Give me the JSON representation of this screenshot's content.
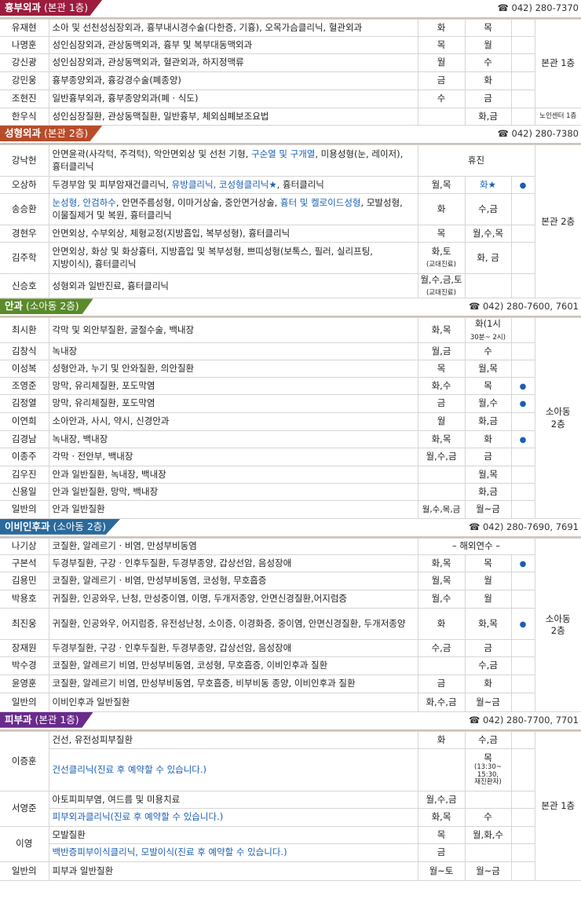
{
  "colors": {
    "thoracic": "#9c1c3e",
    "plastic": "#b84c2a",
    "eye": "#5a8a2a",
    "ent": "#2a6a9c",
    "derm": "#6a2a8c",
    "blue_text": "#1a5fb4",
    "dot": "#1a5fb4"
  },
  "icons": {
    "tel": "telephone-icon",
    "dot": "bullet-dot-icon"
  },
  "sections": [
    {
      "id": "thoracic",
      "title": "흉부외과",
      "sub": "(본관 1층)",
      "tel": "☎ 042) 280-7370",
      "color": "thoracic",
      "rows": [
        {
          "name": "유재현",
          "desc": [
            {
              "t": "소아 및 선천성심장외과, 흉부내시경수술(다한증, 기흉), 오목가슴클리닉, 혈관외과"
            }
          ],
          "am": "화",
          "pm": "목",
          "h": 22
        },
        {
          "name": "나명훈",
          "desc": [
            {
              "t": "성인심장외과, 관상동맥외과, 흉부 및 복부대동맥외과"
            }
          ],
          "am": "목",
          "pm": "월",
          "h": 22
        },
        {
          "name": "강신광",
          "desc": [
            {
              "t": "성인심장외과, 관상동맥외과, 혈관외과, 하지정맥류"
            }
          ],
          "am": "월",
          "pm": "수",
          "h": 23
        },
        {
          "name": "강민웅",
          "desc": [
            {
              "t": "흉부종양외과, 흉강경수술(폐종양)"
            }
          ],
          "am": "금",
          "pm": "화",
          "h": 23
        },
        {
          "name": "조현진",
          "desc": [
            {
              "t": "일반흉부외과, 흉부종양외과(폐 · 식도)"
            }
          ],
          "am": "수",
          "pm": "금",
          "h": 23
        },
        {
          "name": "한우식",
          "desc": [
            {
              "t": "성인심장질환, 관상동맥질환, 일반흉부, 체외심폐보조요법"
            }
          ],
          "am": "",
          "pm": "화,금",
          "h": 22,
          "loc": "노인센터 1층",
          "locSmall": true
        }
      ],
      "loc": "본관 1층",
      "locSpan": 5
    },
    {
      "id": "plastic",
      "title": "성형외과",
      "sub": "(본관 2층)",
      "tel": "☎ 042) 280-7380",
      "color": "plastic",
      "rows": [
        {
          "name": "강낙헌",
          "desc": [
            {
              "t": "안면윤곽(사각턱, 주걱턱), 악안면외상 및 선천 기형, "
            },
            {
              "t": "구순열 및 구개열",
              "b": 1
            },
            {
              "t": ", 미용성형(눈, 레이저), 흉터클리닉"
            }
          ],
          "merged": "휴진",
          "h": 40
        },
        {
          "name": "오상하",
          "desc": [
            {
              "t": "두경부암 및 피부암재건클리닉, "
            },
            {
              "t": "유방클리닉, 코성형클리닉★",
              "b": 1
            },
            {
              "t": ", 흉터클리닉"
            }
          ],
          "am": "월,목",
          "pm": "화★",
          "pmBlue": true,
          "dot": true,
          "h": 22
        },
        {
          "name": "송승환",
          "desc": [
            {
              "t": "눈성형, 안검하수",
              "b": 1
            },
            {
              "t": ", 안면주름성형, 이마거상술, 중안면거상술, "
            },
            {
              "t": "흉터 및 켈로이드성형",
              "b": 1
            },
            {
              "t": ", 모발성형, 이물질제거 및 복원, 흉터클리닉"
            }
          ],
          "am": "화",
          "pm": "수,금",
          "h": 40
        },
        {
          "name": "경현우",
          "desc": [
            {
              "t": "안면외상, 수부외상, 체형교정(지방흡입, 복부성형), 흉터클리닉"
            }
          ],
          "am": "목",
          "pm": "월,수,목",
          "h": 22
        },
        {
          "name": "김주학",
          "desc": [
            {
              "t": "안면외상, 화상 및 화상흉터, 지방흡입 및 복부성형, 쁘띠성형(보톡스, 필러, 실리프팅, 지방이식), 흉터클리닉"
            }
          ],
          "am": "화,토",
          "amNote": "(교대진료)",
          "pm": "화, 금",
          "h": 40
        },
        {
          "name": "신승호",
          "desc": [
            {
              "t": "성형외과 일반진료, 흉터클리닉"
            }
          ],
          "am": "월,수,금,토",
          "amNote": "(교대진료)",
          "pm": "",
          "h": 28
        }
      ],
      "loc": "본관 2층",
      "locSpan": 6
    },
    {
      "id": "eye",
      "title": "안과",
      "sub": "(소아동 2층)",
      "tel": "☎ 042) 280-7600, 7601",
      "color": "eye",
      "rows": [
        {
          "name": "최시환",
          "desc": [
            {
              "t": "각막 및 외안부질환, 굴절수술, 백내장"
            }
          ],
          "am": "화,목",
          "pm": "화(1시",
          "pmNote": "30분~ 2시)",
          "h": 30
        },
        {
          "name": "김창식",
          "desc": [
            {
              "t": "녹내장"
            }
          ],
          "am": "월,금",
          "pm": "수",
          "h": 22
        },
        {
          "name": "이성복",
          "desc": [
            {
              "t": "성형안과, 누기 및 안와질환, 의안질환"
            }
          ],
          "am": "목",
          "pm": "월,목",
          "h": 22
        },
        {
          "name": "조영준",
          "desc": [
            {
              "t": "망막, 유리체질환, 포도막염"
            }
          ],
          "am": "화,수",
          "pm": "목",
          "dot": true,
          "h": 22
        },
        {
          "name": "김정열",
          "desc": [
            {
              "t": "망막, 유리체질환, 포도막염"
            }
          ],
          "am": "금",
          "pm": "월,수",
          "dot": true,
          "h": 23
        },
        {
          "name": "이연희",
          "desc": [
            {
              "t": "소아안과, 사시, 약시, 신경안과"
            }
          ],
          "am": "월",
          "pm": "화,금",
          "h": 23
        },
        {
          "name": "김경남",
          "desc": [
            {
              "t": "녹내장, 백내장"
            }
          ],
          "am": "화,목",
          "pm": "화",
          "dot": true,
          "h": 22
        },
        {
          "name": "이종주",
          "desc": [
            {
              "t": "각막 · 전안부, 백내장"
            }
          ],
          "am": "월,수,금",
          "pm": "금",
          "h": 23
        },
        {
          "name": "김우진",
          "desc": [
            {
              "t": "안과 일반질환, 녹내장, 백내장"
            }
          ],
          "am": "",
          "pm": "월,목",
          "h": 22
        },
        {
          "name": "신용일",
          "desc": [
            {
              "t": "안과 일반질환, 망막, 백내장"
            }
          ],
          "am": "",
          "pm": "화,금",
          "h": 22
        },
        {
          "name": "일반의",
          "desc": [
            {
              "t": "안과 일반질환"
            }
          ],
          "am": "월,수,목,금",
          "amSmall": true,
          "pm": "월~금",
          "h": 23
        }
      ],
      "loc": "소아동\n2층",
      "locSpan": 11
    },
    {
      "id": "ent",
      "title": "이비인후과",
      "sub": "(소아동 2층)",
      "tel": "☎ 042) 280-7690, 7691",
      "color": "ent",
      "rows": [
        {
          "name": "나기상",
          "desc": [
            {
              "t": "코질환, 알레르기 · 비염, 만성부비동염"
            }
          ],
          "merged": "– 해외연수 –",
          "h": 21
        },
        {
          "name": "구본석",
          "desc": [
            {
              "t": "두경부질환, 구강 · 인후두질환, 두경부종양, 갑상선암, 음성장애"
            }
          ],
          "am": "화,목",
          "pm": "목",
          "dot": true,
          "h": 22
        },
        {
          "name": "김용민",
          "desc": [
            {
              "t": "코질환, 알레르기 · 비염, 만성부비동염, 코성형, 무호흡증"
            }
          ],
          "am": "월,목",
          "pm": "월",
          "h": 23
        },
        {
          "name": "박용호",
          "desc": [
            {
              "t": "귀질환, 인공와우, 난청, 만성중이염, 이명, 두개저종양, 안면신경질환,어지럼증"
            }
          ],
          "am": "월,수",
          "pm": "월",
          "h": 23
        },
        {
          "name": "최진웅",
          "desc": [
            {
              "t": "귀질환, 인공와우, 어지럼증, 유전성난청, 소이증, 이경화증, 중이염, 안면신경질환, 두개저종양"
            }
          ],
          "am": "화",
          "pm": "화,목",
          "dot": true,
          "h": 40
        },
        {
          "name": "장재원",
          "desc": [
            {
              "t": "두경부질환, 구강 · 인후두질환, 두경부종양, 갑상선암, 음성장애"
            }
          ],
          "am": "수,금",
          "pm": "금",
          "h": 22
        },
        {
          "name": "박수경",
          "desc": [
            {
              "t": "코질환, 알레르기 비염, 만성부비동염, 코성형, 무호흡증, 이비인후과 질환"
            }
          ],
          "am": "",
          "pm": "수,금",
          "h": 23
        },
        {
          "name": "윤영훈",
          "desc": [
            {
              "t": "코질환, 알레르기 비염, 만성부비동염, 무호흡증, 비부비동 종양, 이비인후과 질환"
            }
          ],
          "am": "금",
          "pm": "화",
          "h": 23
        },
        {
          "name": "일반의",
          "desc": [
            {
              "t": "이비인후과 일반질환"
            }
          ],
          "am": "화,수,금",
          "pm": "월~금",
          "h": 24
        }
      ],
      "loc": "소아동\n2층",
      "locSpan": 9
    },
    {
      "id": "derm",
      "title": "피부과",
      "sub": "(본관 1층)",
      "tel": "☎ 042) 280-7700, 7701",
      "color": "derm",
      "rows": [
        {
          "name": "이증훈",
          "desc": [
            {
              "t": "건선, 유전성피부질환"
            }
          ],
          "am": "화",
          "pm": "수,금",
          "h": 22,
          "nameRowspan": 2
        },
        {
          "name": "",
          "desc": [
            {
              "t": "건선클리닉(진료 후 예약할 수 있습니다.)",
              "b": 1
            }
          ],
          "am": "",
          "pm": "목",
          "pmNote": "(13:30~\n15:30,\n재진환자)",
          "h": 54,
          "skipName": true
        },
        {
          "name": "서영준",
          "desc": [
            {
              "t": "아토피피부염, 여드름 및 미용치료"
            }
          ],
          "am": "월,수,금",
          "pm": "",
          "h": 22,
          "nameRowspan": 2
        },
        {
          "name": "",
          "desc": [
            {
              "t": "피부외과클리닉(진료 후 예약할 수 있습니다.)",
              "b": 1
            }
          ],
          "am": "화,목",
          "pm": "수",
          "h": 23,
          "skipName": true
        },
        {
          "name": "이영",
          "desc": [
            {
              "t": "모발질환"
            }
          ],
          "am": "목",
          "pm": "월,화,수",
          "h": 22,
          "nameRowspan": 2
        },
        {
          "name": "",
          "desc": [
            {
              "t": "백반증피부이식클리닉, 모발이식(진료 후 예약할 수 있습니다.)",
              "b": 1
            }
          ],
          "am": "금",
          "pm": "",
          "h": 23,
          "skipName": true
        },
        {
          "name": "일반의",
          "desc": [
            {
              "t": "피부과 일반질환"
            }
          ],
          "am": "월~토",
          "pm": "월~금",
          "h": 24
        }
      ],
      "loc": "본관 1층",
      "locSpan": 7
    }
  ]
}
